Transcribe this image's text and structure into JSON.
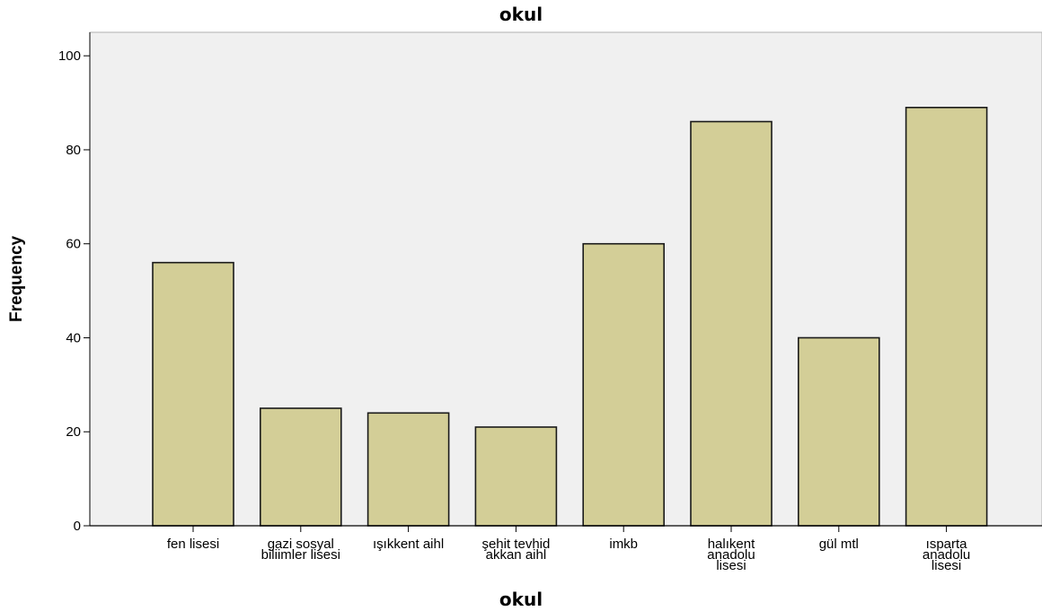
{
  "chart_data": {
    "type": "bar",
    "title": "okul",
    "xlabel": "okul",
    "ylabel": "Frequency",
    "categories": [
      [
        "fen lisesi"
      ],
      [
        "gazi sosyal",
        "biliimler lisesi"
      ],
      [
        "ışıkkent aihl"
      ],
      [
        "şehit tevhid",
        "akkan aihl"
      ],
      [
        "imkb"
      ],
      [
        "halıkent",
        "anadolu",
        "lisesi"
      ],
      [
        "gül mtl"
      ],
      [
        "ısparta",
        "anadolu",
        "lisesi"
      ]
    ],
    "values": [
      56,
      25,
      24,
      21,
      60,
      86,
      40,
      89
    ],
    "ylim": [
      0,
      105
    ],
    "yticks": [
      0,
      20,
      40,
      60,
      80,
      100
    ],
    "grid": false,
    "colors": {
      "bar_fill": "#d3ce97",
      "bar_stroke": "#1a1a1a",
      "plot_background": "#f0f0f0"
    }
  }
}
